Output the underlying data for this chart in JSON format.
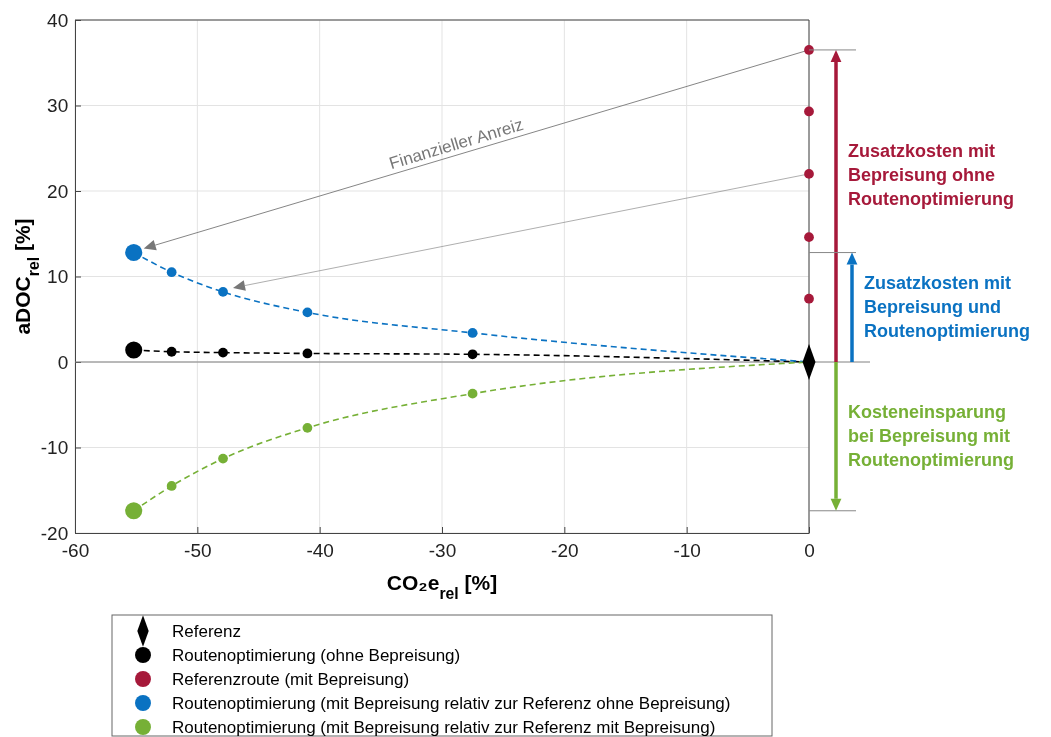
{
  "chart_data": {
    "type": "line",
    "xlabel": "CO₂e$_{rel}$ [%]",
    "ylabel": "aDOC$_{rel}$ [%]",
    "xlim": [
      -60,
      0
    ],
    "xticks": [
      -60,
      -50,
      -40,
      -30,
      -20,
      -10,
      0
    ],
    "ylim": [
      -20,
      40
    ],
    "yticks": [
      -20,
      -10,
      0,
      10,
      20,
      30,
      40
    ],
    "grid": true,
    "legend": "bottom",
    "line_style": "dashed",
    "marker": "circle",
    "ref_lines": [
      {
        "axis": "y",
        "value": 0,
        "color": "#808080"
      }
    ],
    "series": [
      {
        "name": "Referenz",
        "type": "scatter",
        "marker": "diamond",
        "color": "#000000",
        "x": [
          0
        ],
        "values": [
          0
        ]
      },
      {
        "name": "Routenoptimierung (ohne Bepreisung)",
        "color": "#000000",
        "x": [
          -55.2,
          -52.1,
          -47.9,
          -41,
          -27.5,
          0
        ],
        "values": [
          1.4,
          1.2,
          1.1,
          1.0,
          0.9,
          0
        ]
      },
      {
        "name": "Referenzroute (mit Bepreisung)",
        "type": "scatter",
        "color": "#a6193a",
        "x": [
          0,
          0,
          0,
          0,
          0
        ],
        "values": [
          36.5,
          29.3,
          22,
          14.6,
          7.4
        ]
      },
      {
        "name": "Routenoptimierung (mit Bepreisung relativ zur Referenz ohne Bepreisung)",
        "color": "#0a72c2",
        "x": [
          -55.2,
          -52.1,
          -47.9,
          -41,
          -27.5,
          0
        ],
        "values": [
          12.8,
          10.5,
          8.2,
          5.8,
          3.4,
          0
        ]
      },
      {
        "name": "Routenoptimierung (mit Bepreisung relativ zur Referenz mit Bepreisung)",
        "color": "#76b036",
        "x": [
          -55.2,
          -52.1,
          -47.9,
          -41,
          -27.5,
          0
        ],
        "values": [
          -17.4,
          -14.5,
          -11.3,
          -7.7,
          -3.7,
          0
        ]
      }
    ],
    "annotations": [
      "Finanzieller Anreiz",
      "Zusatzkosten mit Bepreisung ohne Routenoptimierung",
      "Zusatzkosten mit Bepreisung und Routenoptimierung",
      "Kosteneinsparung bei Bepreisung mit Routenoptimierung"
    ]
  }
}
